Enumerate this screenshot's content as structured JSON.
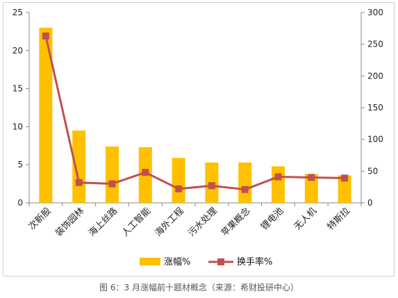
{
  "chart_data": {
    "type": "bar",
    "categories": [
      "次新股",
      "装饰园林",
      "海上丝路",
      "人工智能",
      "海外工程",
      "污水处理",
      "苹果概念",
      "锂电池",
      "无人机",
      "特斯拉"
    ],
    "series": [
      {
        "name": "涨幅%",
        "type": "bar",
        "axis": "left",
        "color": "#FFC000",
        "values": [
          23.0,
          9.5,
          7.4,
          7.3,
          5.9,
          5.3,
          5.3,
          4.8,
          3.8,
          3.6
        ]
      },
      {
        "name": "换手率%",
        "type": "line",
        "axis": "right",
        "color": "#C0504D",
        "values": [
          263,
          32,
          30,
          48,
          22,
          27,
          21,
          41,
          40,
          39
        ]
      }
    ],
    "y_left": {
      "ylim": [
        0,
        25
      ],
      "ticks": [
        "0",
        "5",
        "10",
        "15",
        "20",
        "25"
      ]
    },
    "y_right": {
      "ylim": [
        0,
        300
      ],
      "ticks": [
        "0",
        "50",
        "100",
        "150",
        "200",
        "250",
        "300"
      ]
    },
    "grid": false,
    "legend_position": "bottom"
  },
  "caption": "图 6：3 月涨幅前十题材概念（来源：希财投研中心）"
}
